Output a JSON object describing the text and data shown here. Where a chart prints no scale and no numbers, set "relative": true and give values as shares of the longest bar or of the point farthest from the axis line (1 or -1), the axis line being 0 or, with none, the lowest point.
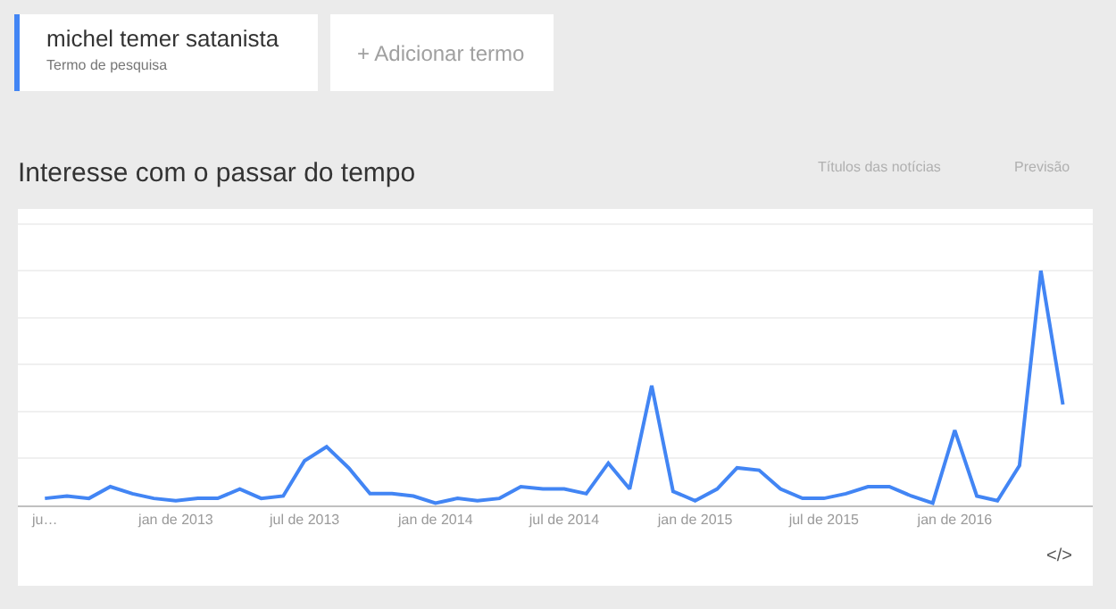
{
  "chart_data": {
    "type": "line",
    "title": "Interesse com o passar do tempo",
    "relative": true,
    "annotations": [
      "michel temer satanista",
      "Termo de pesquisa",
      "+ Adicionar termo",
      "Títulos das notícias",
      "Previsão",
      "</>"
    ],
    "x": [
      "2012-07",
      "2012-08",
      "2012-09",
      "2012-10",
      "2012-11",
      "2012-12",
      "2013-01",
      "2013-02",
      "2013-03",
      "2013-04",
      "2013-05",
      "2013-06",
      "2013-07",
      "2013-08",
      "2013-09",
      "2013-10",
      "2013-11",
      "2013-12",
      "2014-01",
      "2014-02",
      "2014-03",
      "2014-04",
      "2014-05",
      "2014-06",
      "2014-07",
      "2014-08",
      "2014-09",
      "2014-10",
      "2014-11",
      "2014-12",
      "2015-01",
      "2015-02",
      "2015-03",
      "2015-04",
      "2015-05",
      "2015-06",
      "2015-07",
      "2015-08",
      "2015-09",
      "2015-10",
      "2015-11",
      "2015-12",
      "2016-01",
      "2016-02",
      "2016-03",
      "2016-04",
      "2016-05",
      "2016-06"
    ],
    "series": [
      {
        "color": "#4285f4",
        "values": [
          0.03,
          0.04,
          0.03,
          0.08,
          0.05,
          0.03,
          0.02,
          0.03,
          0.03,
          0.07,
          0.03,
          0.04,
          0.19,
          0.25,
          0.16,
          0.05,
          0.05,
          0.04,
          0.01,
          0.03,
          0.02,
          0.03,
          0.08,
          0.07,
          0.07,
          0.05,
          0.18,
          0.07,
          0.51,
          0.06,
          0.02,
          0.07,
          0.16,
          0.15,
          0.07,
          0.03,
          0.03,
          0.05,
          0.08,
          0.08,
          0.04,
          0.01,
          0.32,
          0.04,
          0.02,
          0.17,
          1.0,
          0.43
        ]
      }
    ],
    "xlim": [
      "2012-05-24",
      "2016-07-13"
    ],
    "xticks": [
      {
        "value": "2012-07",
        "label": "ju…"
      },
      {
        "value": "2013-01",
        "label": "jan de 2013"
      },
      {
        "value": "2013-07",
        "label": "jul de 2013"
      },
      {
        "value": "2014-01",
        "label": "jan de 2014"
      },
      {
        "value": "2014-07",
        "label": "jul de 2014"
      },
      {
        "value": "2015-01",
        "label": "jan de 2015"
      },
      {
        "value": "2015-07",
        "label": "jul de 2015"
      },
      {
        "value": "2016-01",
        "label": "jan de 2016"
      }
    ],
    "grid": "y",
    "marker": "none",
    "line_style": "solid"
  }
}
